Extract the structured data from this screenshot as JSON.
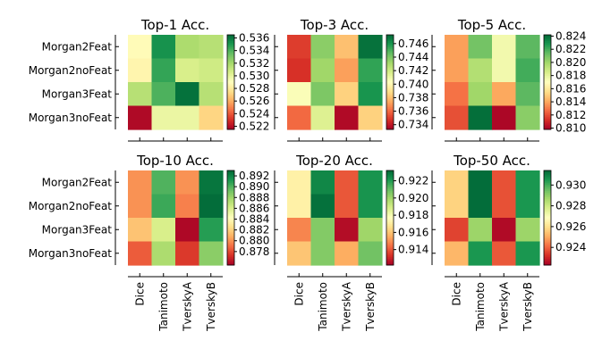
{
  "chart_data": {
    "type": "heatmap",
    "colormap": "RdYlGn",
    "row_labels": [
      "Morgan2Feat",
      "Morgan2noFeat",
      "Morgan3Feat",
      "Morgan3noFeat"
    ],
    "col_labels": [
      "Dice",
      "Tanimoto",
      "TverskyA",
      "TverskyB"
    ],
    "panels": [
      {
        "title": "Top-1 Acc.",
        "vmin": 0.5215,
        "vmax": 0.5365,
        "ticks": [
          "0.522",
          "0.524",
          "0.526",
          "0.528",
          "0.530",
          "0.532",
          "0.534",
          "0.536"
        ],
        "values": [
          [
            0.5288,
            0.5352,
            0.5318,
            0.5315
          ],
          [
            0.5285,
            0.5345,
            0.5305,
            0.5308
          ],
          [
            0.5315,
            0.534,
            0.5362,
            0.5315
          ],
          [
            0.5218,
            0.5298,
            0.5298,
            0.5272
          ]
        ]
      },
      {
        "title": "Top-3 Acc.",
        "vmin": 0.7333,
        "vmax": 0.7473,
        "ticks": [
          "0.734",
          "0.736",
          "0.738",
          "0.740",
          "0.742",
          "0.744",
          "0.746"
        ],
        "values": [
          [
            0.735,
            0.7437,
            0.738,
            0.747
          ],
          [
            0.7347,
            0.7432,
            0.7372,
            0.7455
          ],
          [
            0.7405,
            0.744,
            0.7385,
            0.746
          ],
          [
            0.736,
            0.7415,
            0.7336,
            0.7385
          ]
        ]
      },
      {
        "title": "Top-5 Acc.",
        "vmin": 0.8098,
        "vmax": 0.8242,
        "ticks": [
          "0.810",
          "0.812",
          "0.814",
          "0.816",
          "0.818",
          "0.820",
          "0.822",
          "0.824"
        ],
        "values": [
          [
            0.8138,
            0.821,
            0.8175,
            0.8215
          ],
          [
            0.8138,
            0.8195,
            0.8175,
            0.822
          ],
          [
            0.8128,
            0.82,
            0.814,
            0.8215
          ],
          [
            0.812,
            0.824,
            0.81,
            0.8205
          ]
        ]
      },
      {
        "title": "Top-10 Acc.",
        "vmin": 0.8755,
        "vmax": 0.893,
        "ticks": [
          "0.878",
          "0.880",
          "0.882",
          "0.884",
          "0.886",
          "0.888",
          "0.890",
          "0.892"
        ],
        "values": [
          [
            0.88,
            0.89,
            0.88,
            0.8925
          ],
          [
            0.88,
            0.8905,
            0.8795,
            0.8928
          ],
          [
            0.8815,
            0.886,
            0.8758,
            0.891
          ],
          [
            0.8785,
            0.8875,
            0.8775,
            0.8885
          ]
        ]
      },
      {
        "title": "Top-20 Acc.",
        "vmin": 0.9122,
        "vmax": 0.9232,
        "ticks": [
          "0.914",
          "0.916",
          "0.918",
          "0.920",
          "0.922"
        ],
        "values": [
          [
            0.9172,
            0.9225,
            0.914,
            0.9222
          ],
          [
            0.9172,
            0.923,
            0.914,
            0.9222
          ],
          [
            0.9148,
            0.9205,
            0.9125,
            0.92
          ],
          [
            0.916,
            0.9205,
            0.9155,
            0.9208
          ]
        ]
      },
      {
        "title": "Top-50 Acc.",
        "vmin": 0.9223,
        "vmax": 0.9314,
        "ticks": [
          "0.924",
          "0.926",
          "0.928",
          "0.930"
        ],
        "values": [
          [
            0.9257,
            0.9313,
            0.9237,
            0.9305
          ],
          [
            0.9257,
            0.9313,
            0.9237,
            0.9305
          ],
          [
            0.9235,
            0.9288,
            0.9225,
            0.9288
          ],
          [
            0.9252,
            0.9305,
            0.9238,
            0.9305
          ]
        ]
      }
    ]
  }
}
